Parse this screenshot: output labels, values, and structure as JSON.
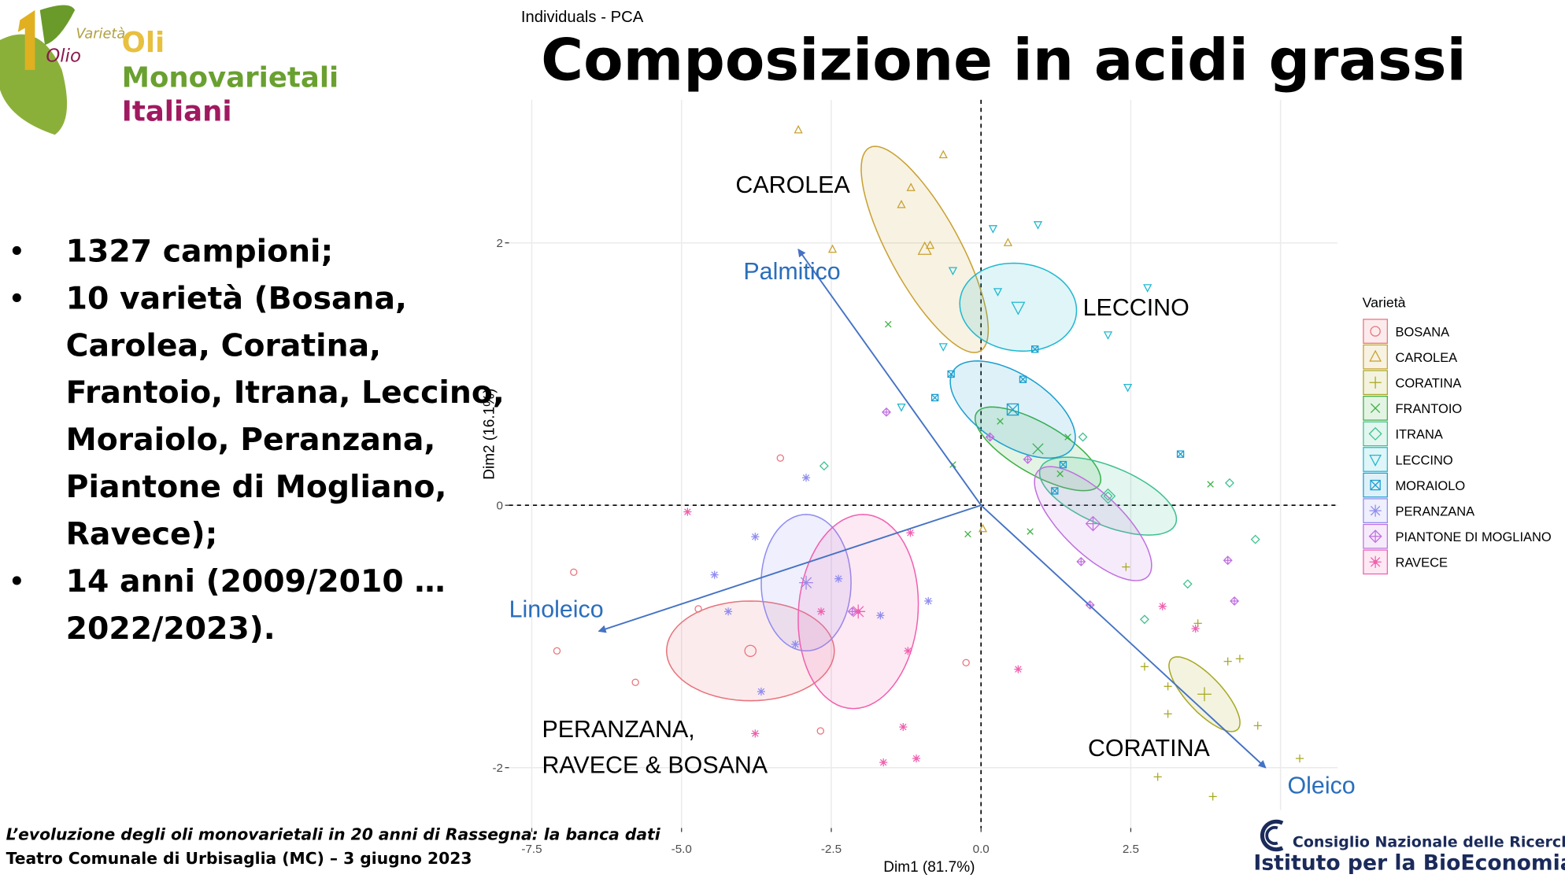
{
  "logo": {
    "variety": "Varietà",
    "olio": "Olio",
    "line1": "Oli",
    "line2": "Monovarietali",
    "line3": "Italiani"
  },
  "title": "Composizione in acidi grassi",
  "bullets": [
    [
      "1327 campioni;"
    ],
    [
      "10 varietà (Bosana,",
      "Carolea, Coratina,",
      "Frantoio, Itrana, Leccino,",
      "Moraiolo, Peranzana,",
      "Piantone di Mogliano,",
      "Ravece);"
    ],
    [
      "14 anni (2009/2010 …",
      "2022/2023)."
    ]
  ],
  "footer": {
    "line1": "L’evoluzione degli oli monovarietali in 20 anni di Rassegna: la banca dati",
    "line2": "Teatro Comunale di Urbisaglia (MC) – 3 giugno 2023"
  },
  "institution": {
    "line1": "Consiglio Nazionale delle Ricerche",
    "line2": "Istituto per la BioEconomia"
  },
  "chart_data": {
    "type": "scatter",
    "title": "Individuals - PCA",
    "x_label": "Dim1 (81.7%)",
    "y_label": "Dim2 (16.1%)",
    "xlim": [
      -7.88,
      5.95
    ],
    "ylim": [
      -2.46,
      3.09
    ],
    "xticks": [
      -7.5,
      {
        "value": -5,
        "label": "-5.0"
      },
      -2.5,
      {
        "value": 0,
        "label": "0.0"
      },
      2.5,
      {
        "value": 5,
        "label": "5.0"
      }
    ],
    "yticks": [
      -2,
      0,
      2
    ],
    "grid": true,
    "legend_title": "Varietà",
    "legend_position": "right",
    "series": [
      {
        "name": "BOSANA",
        "color": "#e8737c",
        "marker": "circle",
        "x": [
          -6.8,
          -7.08,
          -5.77,
          -4.72,
          -3.35,
          -2.68,
          -0.25
        ],
        "y": [
          -0.51,
          -1.11,
          -1.35,
          -0.79,
          0.36,
          -1.72,
          -1.2
        ],
        "ellipse_center": [
          -3.85,
          -1.11
        ],
        "ellipse_axis1": [
          1.4,
          0
        ],
        "ellipse_axis2": [
          0,
          0.38
        ]
      },
      {
        "name": "CAROLEA",
        "color": "#c9a030",
        "marker": "triangle",
        "x": [
          -3.05,
          -0.63,
          -1.17,
          -1.33,
          -2.48,
          -0.85,
          0.45,
          0.03
        ],
        "y": [
          2.86,
          2.67,
          2.42,
          2.29,
          1.95,
          1.98,
          2.0,
          -0.18
        ],
        "ellipse_center": [
          -0.94,
          1.95
        ],
        "ellipse_axis1": [
          0.97,
          -0.76
        ],
        "ellipse_axis2": [
          0.43,
          0.2
        ]
      },
      {
        "name": "CORATINA",
        "color": "#a8a820",
        "marker": "plus",
        "x": [
          2.73,
          3.12,
          4.12,
          4.32,
          4.62,
          3.12,
          5.32,
          3.87,
          2.95,
          2.42,
          3.62
        ],
        "y": [
          -1.23,
          -1.38,
          -1.19,
          -1.17,
          -1.68,
          -1.59,
          -1.93,
          -2.22,
          -2.07,
          -0.47,
          -0.9
        ],
        "ellipse_center": [
          3.73,
          -1.44
        ],
        "ellipse_axis1": [
          0.55,
          -0.27
        ],
        "ellipse_axis2": [
          -0.22,
          -0.09
        ]
      },
      {
        "name": "FRANTOIO",
        "color": "#3cb043",
        "marker": "x",
        "x": [
          -1.55,
          0.32,
          1.45,
          -0.47,
          0.82,
          -0.22,
          3.83,
          1.32
        ],
        "y": [
          1.38,
          0.64,
          0.52,
          0.31,
          -0.2,
          -0.22,
          0.16,
          0.24
        ],
        "ellipse_center": [
          0.95,
          0.43
        ],
        "ellipse_axis1": [
          1.03,
          -0.27
        ],
        "ellipse_axis2": [
          -0.2,
          -0.17
        ]
      },
      {
        "name": "ITRANA",
        "color": "#3cc08f",
        "marker": "diamond",
        "x": [
          -2.62,
          1.7,
          3.45,
          4.58,
          4.15,
          2.73,
          2.12
        ],
        "y": [
          0.3,
          0.52,
          -0.6,
          -0.26,
          0.17,
          -0.87,
          0.07
        ],
        "ellipse_center": [
          2.12,
          0.07
        ],
        "ellipse_axis1": [
          1.13,
          -0.21
        ],
        "ellipse_axis2": [
          -0.17,
          -0.21
        ]
      },
      {
        "name": "LECCINO",
        "color": "#1fb8d0",
        "marker": "triangle-down",
        "x": [
          0.95,
          0.2,
          2.78,
          2.12,
          2.45,
          -1.33,
          -0.47,
          0.28,
          -0.63
        ],
        "y": [
          2.14,
          2.11,
          1.66,
          1.3,
          0.9,
          0.75,
          1.79,
          1.63,
          1.21
        ],
        "ellipse_center": [
          0.62,
          1.51
        ],
        "ellipse_axis1": [
          0.97,
          -0.06
        ],
        "ellipse_axis2": [
          -0.1,
          -0.33
        ]
      },
      {
        "name": "MORAIOLO",
        "color": "#1a9fd0",
        "marker": "square-x",
        "x": [
          -0.77,
          -0.5,
          0.7,
          3.33,
          1.23,
          0.9,
          1.37
        ],
        "y": [
          0.82,
          1.0,
          0.96,
          0.39,
          0.11,
          1.19,
          0.31
        ],
        "ellipse_center": [
          0.53,
          0.73
        ],
        "ellipse_axis1": [
          1.0,
          -0.29
        ],
        "ellipse_axis2": [
          -0.3,
          -0.23
        ]
      },
      {
        "name": "PERANZANA",
        "color": "#8f8cf0",
        "marker": "asterisk",
        "x": [
          -2.92,
          -4.45,
          -3.77,
          -4.22,
          -3.67,
          -0.88,
          -1.68,
          -3.1,
          -2.38
        ],
        "y": [
          0.21,
          -0.53,
          -0.24,
          -0.81,
          -1.42,
          -0.73,
          -0.84,
          -1.06,
          -0.56
        ],
        "ellipse_center": [
          -2.92,
          -0.59
        ],
        "ellipse_axis1": [
          0.75,
          0
        ],
        "ellipse_axis2": [
          0,
          0.52
        ]
      },
      {
        "name": "PIANTONE DI MOGLIANO",
        "color": "#c070e0",
        "marker": "diamond-plus",
        "x": [
          -1.58,
          0.15,
          0.78,
          1.67,
          4.12,
          4.23,
          1.82,
          -2.15
        ],
        "y": [
          0.71,
          0.52,
          0.35,
          -0.43,
          -0.42,
          -0.73,
          -0.76,
          -0.81
        ],
        "ellipse_center": [
          1.87,
          -0.14
        ],
        "ellipse_axis1": [
          0.92,
          -0.4
        ],
        "ellipse_axis2": [
          -0.33,
          -0.17
        ]
      },
      {
        "name": "RAVECE",
        "color": "#f060b0",
        "marker": "star",
        "x": [
          -4.9,
          -1.18,
          3.03,
          3.58,
          0.62,
          -1.22,
          -1.3,
          -3.77,
          -1.63,
          -1.08,
          -2.67
        ],
        "y": [
          -0.05,
          -0.21,
          -0.77,
          -0.94,
          -1.25,
          -1.11,
          -1.69,
          -1.74,
          -1.96,
          -1.93,
          -0.81
        ],
        "ellipse_center": [
          -2.05,
          -0.81
        ],
        "ellipse_axis1": [
          1.0,
          0
        ],
        "ellipse_axis2": [
          0.08,
          0.74
        ]
      }
    ],
    "vectors": [
      {
        "name": "Palmitico",
        "x": -3.05,
        "y": 1.95
      },
      {
        "name": "Linoleico",
        "x": -6.38,
        "y": -0.96
      },
      {
        "name": "Oleico",
        "x": 4.75,
        "y": -2.0
      }
    ],
    "vector_color": "#4472c4",
    "annotations": [
      "CAROLEA",
      "LECCINO",
      "CORATINA",
      "PERANZANA,",
      "RAVECE & BOSANA"
    ]
  }
}
